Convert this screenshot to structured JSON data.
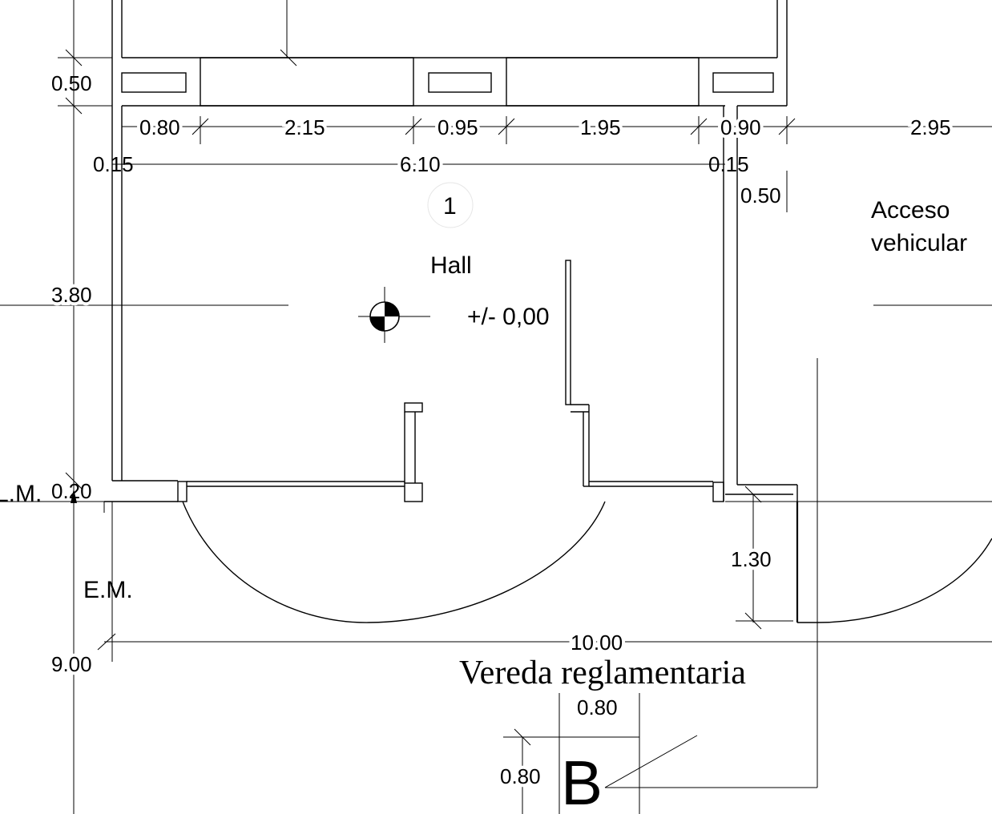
{
  "plan": {
    "room_number": "1",
    "room_name": "Hall",
    "level": "+/- 0,00",
    "access_label": [
      "Acceso",
      "vehicular"
    ],
    "sidewalk_label": "Vereda reglamentaria",
    "line_label_lm": "L.M.",
    "line_label_em": "E.M.",
    "section_marker": "B",
    "dimensions": {
      "wall_top": "0.50",
      "seg1": "0.80",
      "seg2": "2.15",
      "seg3": "0.95",
      "seg4": "1.95",
      "seg5": "0.90",
      "seg6": "2.95",
      "wall_left": "0.15",
      "hall_width": "6.10",
      "wall_right": "0.15",
      "side_wall": "0.50",
      "hall_depth": "3.80",
      "front_wall": "0.20",
      "door_swing": "1.30",
      "lot_width": "10.00",
      "setback": "9.00",
      "marker_w": "0.80",
      "marker_h": "0.80"
    }
  }
}
